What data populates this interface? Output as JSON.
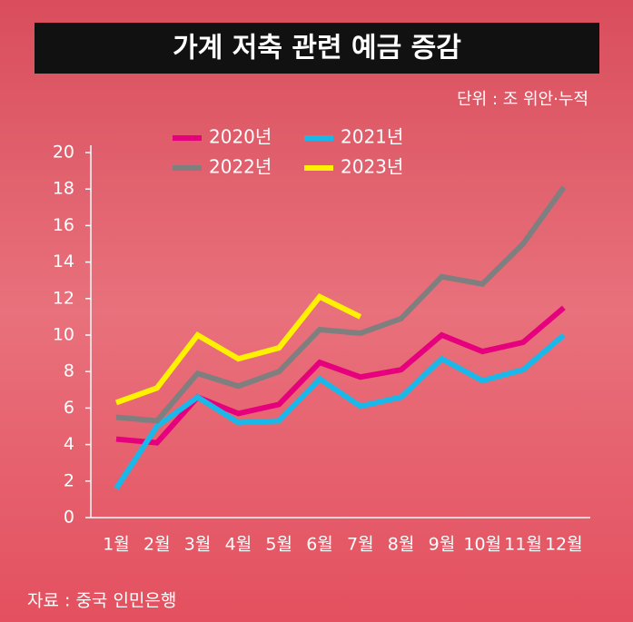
{
  "chart_data": {
    "type": "line",
    "title": "가계 저축 관련 예금 증감",
    "unit": "단위 : 조 위안·누적",
    "source": "자료 : 중국 인민은행",
    "categories": [
      "1월",
      "2월",
      "3월",
      "4월",
      "5월",
      "6월",
      "7월",
      "8월",
      "9월",
      "10월",
      "11월",
      "12월"
    ],
    "series": [
      {
        "name": "2020년",
        "color": "#e6007e",
        "values": [
          4.3,
          4.1,
          6.6,
          5.7,
          6.2,
          8.5,
          7.7,
          8.1,
          10.0,
          9.1,
          9.6,
          11.5
        ]
      },
      {
        "name": "2021년",
        "color": "#1ab8e8",
        "values": [
          1.6,
          5.0,
          6.6,
          5.2,
          5.3,
          7.6,
          6.1,
          6.6,
          8.7,
          7.5,
          8.1,
          10.0
        ]
      },
      {
        "name": "2022년",
        "color": "#7f7f7f",
        "values": [
          5.5,
          5.3,
          7.9,
          7.2,
          8.0,
          10.3,
          10.1,
          10.9,
          13.2,
          12.8,
          15.0,
          18.1
        ]
      },
      {
        "name": "2023년",
        "color": "#fff200",
        "values": [
          6.3,
          7.1,
          10.0,
          8.7,
          9.3,
          12.1,
          11.0,
          null,
          null,
          null,
          null,
          null
        ]
      }
    ],
    "ylim": [
      0,
      20
    ],
    "yticks": [
      0,
      2,
      4,
      6,
      8,
      10,
      12,
      14,
      16,
      18,
      20
    ]
  }
}
